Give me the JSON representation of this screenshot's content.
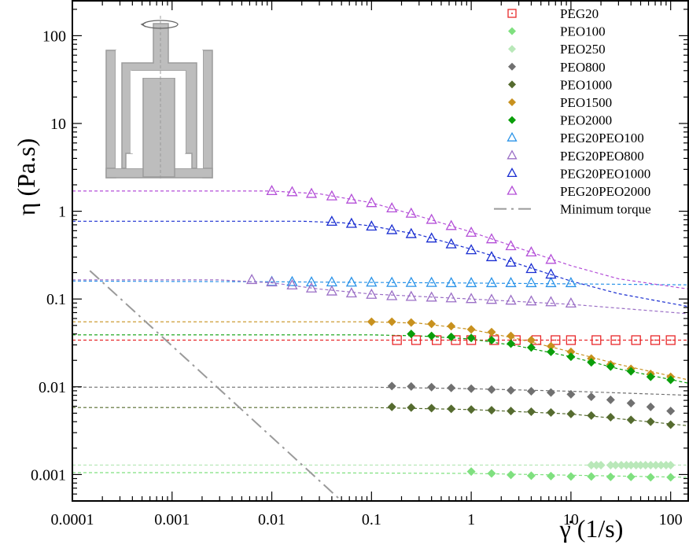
{
  "chart_data": {
    "type": "scatter",
    "title": "",
    "xlabel": "γ̇ (1/s)",
    "ylabel": "η (Pa.s)",
    "xscale": "log",
    "yscale": "log",
    "xlim": [
      0.0001,
      150
    ],
    "ylim": [
      0.0005,
      250
    ],
    "xticks": [
      {
        "value": 0.0001,
        "label": "0.0001"
      },
      {
        "value": 0.001,
        "label": "0.001"
      },
      {
        "value": 0.01,
        "label": "0.01"
      },
      {
        "value": 0.1,
        "label": "0.1"
      },
      {
        "value": 1,
        "label": "1"
      },
      {
        "value": 10,
        "label": "10"
      },
      {
        "value": 100,
        "label": "100"
      }
    ],
    "yticks": [
      {
        "value": 0.001,
        "label": "0.001"
      },
      {
        "value": 0.01,
        "label": "0.01"
      },
      {
        "value": 0.1,
        "label": "0.1"
      },
      {
        "value": 1,
        "label": "1"
      },
      {
        "value": 10,
        "label": "10"
      },
      {
        "value": 100,
        "label": "100"
      }
    ],
    "legend_position": "top-right",
    "grid": false,
    "series": [
      {
        "name": "PEG20",
        "marker": "square-dot",
        "color": "#e8282a",
        "x": [
          0.18,
          0.28,
          0.45,
          0.7,
          1.0,
          1.7,
          2.8,
          4.5,
          7,
          10,
          18,
          28,
          45,
          70,
          100
        ],
        "y": [
          0.034,
          0.034,
          0.034,
          0.034,
          0.034,
          0.034,
          0.034,
          0.034,
          0.034,
          0.034,
          0.034,
          0.034,
          0.034,
          0.034,
          0.034
        ],
        "fit_x": [
          0.0001,
          150
        ],
        "fit_y": [
          0.034,
          0.034
        ]
      },
      {
        "name": "PEO100",
        "marker": "diamond",
        "color": "#7fe07f",
        "x": [
          1,
          1.6,
          2.5,
          4,
          6.3,
          10,
          16,
          25,
          40,
          63,
          100
        ],
        "y": [
          0.00108,
          0.00103,
          0.00099,
          0.00097,
          0.00096,
          0.00095,
          0.00095,
          0.00094,
          0.00094,
          0.00093,
          0.00093
        ],
        "fit_x": [
          0.0001,
          0.01,
          1,
          150
        ],
        "fit_y": [
          0.00105,
          0.00105,
          0.00103,
          0.00093
        ]
      },
      {
        "name": "PEO250",
        "marker": "diamond",
        "color": "#b9e8b9",
        "x": [
          16,
          18,
          20,
          25,
          28,
          32,
          36,
          40,
          45,
          50,
          56,
          63,
          71,
          80,
          90,
          100
        ],
        "y": [
          0.00128,
          0.00128,
          0.00128,
          0.00128,
          0.00128,
          0.00128,
          0.00128,
          0.00128,
          0.00128,
          0.00128,
          0.00128,
          0.00128,
          0.00128,
          0.00128,
          0.00128,
          0.00128
        ],
        "fit_x": [
          0.0001,
          150
        ],
        "fit_y": [
          0.00128,
          0.00128
        ]
      },
      {
        "name": "PEO800",
        "marker": "diamond",
        "color": "#707070",
        "x": [
          0.16,
          0.25,
          0.4,
          0.63,
          1,
          1.6,
          2.5,
          4,
          6.3,
          10,
          16,
          25,
          40,
          63,
          100
        ],
        "y": [
          0.0102,
          0.0101,
          0.0099,
          0.0097,
          0.0095,
          0.0093,
          0.0091,
          0.0089,
          0.0086,
          0.0082,
          0.0077,
          0.0071,
          0.0065,
          0.0059,
          0.0053
        ],
        "fit_x": [
          0.0001,
          0.1,
          1,
          10,
          150
        ],
        "fit_y": [
          0.0099,
          0.0099,
          0.0095,
          0.0089,
          0.008
        ]
      },
      {
        "name": "PEO1000",
        "marker": "diamond",
        "color": "#556b2f",
        "x": [
          0.16,
          0.25,
          0.4,
          0.63,
          1,
          1.6,
          2.5,
          4,
          6.3,
          10,
          16,
          25,
          40,
          63,
          100
        ],
        "y": [
          0.0059,
          0.0058,
          0.0057,
          0.0056,
          0.0055,
          0.0054,
          0.0053,
          0.0052,
          0.0051,
          0.0049,
          0.0047,
          0.0045,
          0.0042,
          0.004,
          0.0037
        ],
        "fit_x": [
          0.0001,
          0.1,
          1,
          10,
          150
        ],
        "fit_y": [
          0.0058,
          0.0058,
          0.0055,
          0.0049,
          0.0036
        ]
      },
      {
        "name": "PEO1500",
        "marker": "diamond",
        "color": "#c8911e",
        "x": [
          0.1,
          0.16,
          0.25,
          0.4,
          0.63,
          1,
          1.6,
          2.5,
          4,
          6.3,
          10,
          16,
          25,
          40,
          63,
          100
        ],
        "y": [
          0.055,
          0.055,
          0.054,
          0.052,
          0.049,
          0.045,
          0.042,
          0.038,
          0.034,
          0.029,
          0.025,
          0.021,
          0.018,
          0.016,
          0.014,
          0.013
        ],
        "fit_x": [
          0.0001,
          0.1,
          0.3,
          1,
          3,
          10,
          30,
          150
        ],
        "fit_y": [
          0.055,
          0.055,
          0.053,
          0.045,
          0.035,
          0.025,
          0.018,
          0.012
        ]
      },
      {
        "name": "PEO2000",
        "marker": "diamond",
        "color": "#0a9e0a",
        "x": [
          0.25,
          0.4,
          0.63,
          1,
          1.6,
          2.5,
          4,
          6.3,
          10,
          16,
          25,
          40,
          63,
          100
        ],
        "y": [
          0.04,
          0.038,
          0.037,
          0.036,
          0.034,
          0.031,
          0.028,
          0.025,
          0.022,
          0.019,
          0.017,
          0.015,
          0.013,
          0.012
        ],
        "fit_x": [
          0.0001,
          0.1,
          0.3,
          1,
          3,
          10,
          30,
          150
        ],
        "fit_y": [
          0.039,
          0.039,
          0.038,
          0.035,
          0.029,
          0.022,
          0.016,
          0.011
        ]
      },
      {
        "name": "PEG20PEO100",
        "marker": "triangle",
        "color": "#2a93e8",
        "x": [
          0.01,
          0.016,
          0.025,
          0.04,
          0.063,
          0.1,
          0.16,
          0.25,
          0.4,
          0.63,
          1,
          1.6,
          2.5,
          4,
          6.3,
          10
        ],
        "y": [
          0.157,
          0.156,
          0.155,
          0.155,
          0.154,
          0.154,
          0.153,
          0.153,
          0.153,
          0.152,
          0.152,
          0.152,
          0.152,
          0.152,
          0.152,
          0.152
        ],
        "fit_x": [
          0.0001,
          0.01,
          1,
          150
        ],
        "fit_y": [
          0.16,
          0.157,
          0.152,
          0.145
        ]
      },
      {
        "name": "PEG20PEO800",
        "marker": "triangle",
        "color": "#9b6fc6",
        "x": [
          0.0063,
          0.01,
          0.016,
          0.025,
          0.04,
          0.063,
          0.1,
          0.16,
          0.25,
          0.4,
          0.63,
          1,
          1.6,
          2.5,
          4,
          6.3,
          10
        ],
        "y": [
          0.165,
          0.155,
          0.143,
          0.132,
          0.122,
          0.116,
          0.112,
          0.108,
          0.106,
          0.104,
          0.102,
          0.1,
          0.098,
          0.096,
          0.094,
          0.092,
          0.089
        ],
        "fit_x": [
          0.0001,
          0.003,
          0.01,
          0.03,
          0.1,
          1,
          10,
          150
        ],
        "fit_y": [
          0.165,
          0.165,
          0.153,
          0.13,
          0.114,
          0.1,
          0.087,
          0.068
        ]
      },
      {
        "name": "PEG20PEO1000",
        "marker": "triangle",
        "color": "#1a2ed1",
        "x": [
          0.04,
          0.063,
          0.1,
          0.16,
          0.25,
          0.4,
          0.63,
          1,
          1.6,
          2.5,
          4,
          6.3
        ],
        "y": [
          0.76,
          0.72,
          0.67,
          0.61,
          0.55,
          0.49,
          0.42,
          0.36,
          0.3,
          0.26,
          0.22,
          0.19
        ],
        "fit_x": [
          0.0001,
          0.02,
          0.05,
          0.1,
          0.3,
          1,
          3,
          10,
          30,
          150
        ],
        "fit_y": [
          0.77,
          0.77,
          0.74,
          0.68,
          0.54,
          0.37,
          0.25,
          0.16,
          0.115,
          0.082
        ]
      },
      {
        "name": "PEG20PEO2000",
        "marker": "triangle",
        "color": "#b44fd8",
        "x": [
          0.01,
          0.016,
          0.025,
          0.04,
          0.063,
          0.1,
          0.16,
          0.25,
          0.4,
          0.63,
          1,
          1.6,
          2.5,
          4,
          6.3
        ],
        "y": [
          1.7,
          1.65,
          1.58,
          1.48,
          1.36,
          1.24,
          1.08,
          0.94,
          0.8,
          0.68,
          0.57,
          0.48,
          0.4,
          0.34,
          0.28
        ],
        "fit_x": [
          0.0001,
          0.01,
          0.03,
          0.1,
          0.3,
          1,
          3,
          10,
          30,
          150
        ],
        "fit_y": [
          1.7,
          1.7,
          1.58,
          1.25,
          0.88,
          0.58,
          0.38,
          0.24,
          0.17,
          0.13
        ]
      },
      {
        "name": "Minimum torque",
        "marker": "none",
        "line": "dash-dot",
        "color": "#9a9a9a",
        "fit_x": [
          0.00015,
          0.05
        ],
        "fit_y": [
          0.21,
          0.0005
        ]
      }
    ]
  }
}
